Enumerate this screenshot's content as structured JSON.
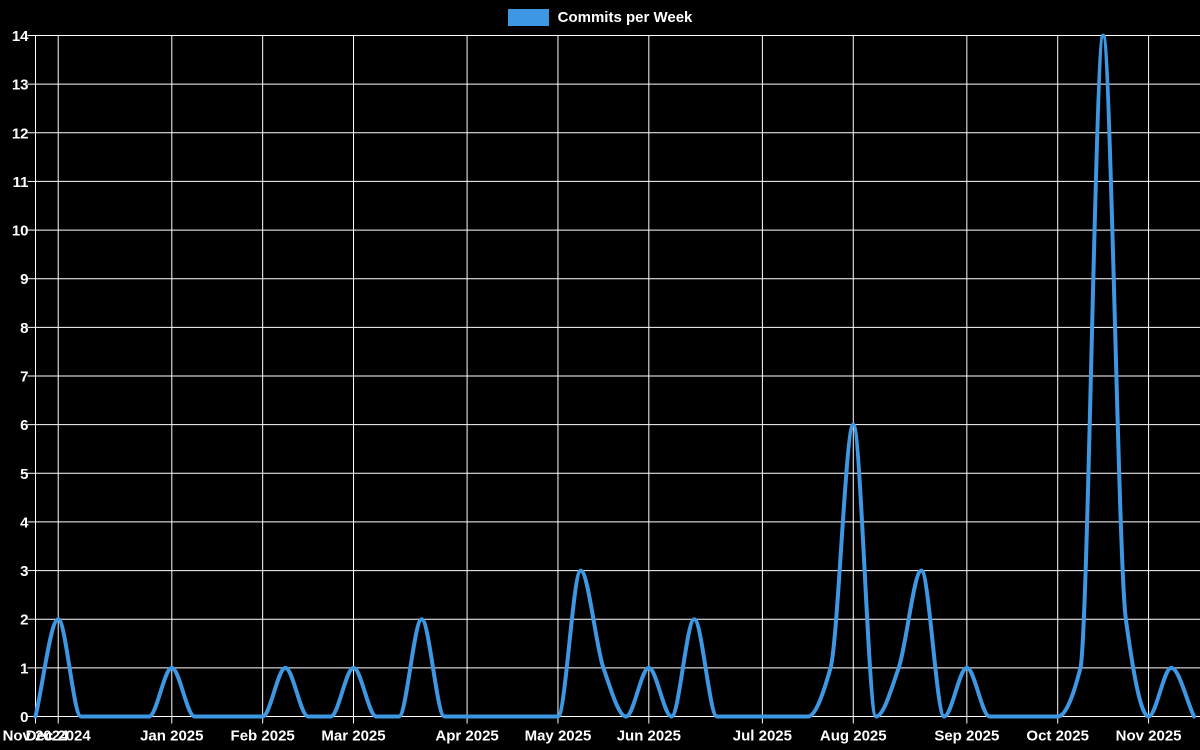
{
  "window": {
    "background": "#000000"
  },
  "legend": {
    "label": "Commits per Week",
    "swatch_color": "#3d97e2"
  },
  "chart_data": {
    "type": "line",
    "title": "",
    "legend_position": "top",
    "xlabel": "",
    "ylabel": "",
    "ylim": [
      0,
      14
    ],
    "grid": "on",
    "grid_color": "#ffffff",
    "text_color": "#ffffff",
    "background": "#000000",
    "interpolation": "monotone",
    "line_width": 4,
    "series": [
      {
        "name": "Commits per Week",
        "color": "#3d97e2",
        "weeks": [
          "2024-11-24",
          "2024-12-01",
          "2024-12-08",
          "2024-12-15",
          "2024-12-22",
          "2024-12-29",
          "2025-01-05",
          "2025-01-12",
          "2025-01-19",
          "2025-01-26",
          "2025-02-02",
          "2025-02-09",
          "2025-02-16",
          "2025-02-23",
          "2025-03-02",
          "2025-03-09",
          "2025-03-16",
          "2025-03-23",
          "2025-03-30",
          "2025-04-06",
          "2025-04-13",
          "2025-04-20",
          "2025-04-27",
          "2025-05-04",
          "2025-05-11",
          "2025-05-18",
          "2025-05-25",
          "2025-06-01",
          "2025-06-08",
          "2025-06-15",
          "2025-06-22",
          "2025-06-29",
          "2025-07-06",
          "2025-07-13",
          "2025-07-20",
          "2025-07-27",
          "2025-08-03",
          "2025-08-10",
          "2025-08-17",
          "2025-08-24",
          "2025-08-31",
          "2025-09-07",
          "2025-09-14",
          "2025-09-21",
          "2025-09-28",
          "2025-10-05",
          "2025-10-12",
          "2025-10-19",
          "2025-10-26",
          "2025-11-02",
          "2025-11-09",
          "2025-11-16"
        ],
        "values": [
          0,
          2,
          0,
          0,
          0,
          0,
          1,
          0,
          0,
          0,
          0,
          1,
          0,
          0,
          1,
          0,
          0,
          2,
          0,
          0,
          0,
          0,
          0,
          0,
          3,
          1,
          0,
          1,
          0,
          2,
          0,
          0,
          0,
          0,
          0,
          1,
          6,
          0,
          1,
          3,
          0,
          1,
          0,
          0,
          0,
          0,
          1,
          14,
          2,
          0,
          1,
          0
        ]
      }
    ],
    "x_ticks": [
      {
        "label": "Nov 2024",
        "week_index": 0
      },
      {
        "label": "Dec 2024",
        "week_index": 1
      },
      {
        "label": "Jan 2025",
        "week_index": 6
      },
      {
        "label": "Feb 2025",
        "week_index": 10
      },
      {
        "label": "Mar 2025",
        "week_index": 14
      },
      {
        "label": "Apr 2025",
        "week_index": 19
      },
      {
        "label": "May 2025",
        "week_index": 23
      },
      {
        "label": "Jun 2025",
        "week_index": 27
      },
      {
        "label": "Jul 2025",
        "week_index": 32
      },
      {
        "label": "Aug 2025",
        "week_index": 36
      },
      {
        "label": "Sep 2025",
        "week_index": 41
      },
      {
        "label": "Oct 2025",
        "week_index": 45
      },
      {
        "label": "Nov 2025",
        "week_index": 49
      }
    ],
    "y_ticks": [
      0,
      1,
      2,
      3,
      4,
      5,
      6,
      7,
      8,
      9,
      10,
      11,
      12,
      13,
      14
    ]
  }
}
